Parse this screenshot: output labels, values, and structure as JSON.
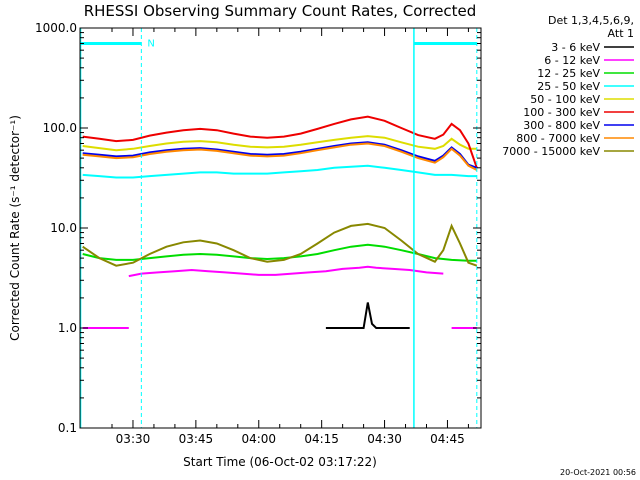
{
  "chart_data": {
    "type": "line",
    "title": "RHESSI Observing Summary Count Rates, Corrected",
    "xlabel": "Start Time (06-Oct-02 03:17:22)",
    "ylabel": "Corrected Count Rate (s⁻¹ detector⁻¹)",
    "y_scale": "log",
    "ylim": [
      0.1,
      1000.0
    ],
    "xlim": [
      "03:17:22",
      "04:53:00"
    ],
    "x_ticks": [
      "03:30",
      "03:45",
      "04:00",
      "04:15",
      "04:30",
      "04:45"
    ],
    "y_ticks": [
      "0.1",
      "1.0",
      "10.0",
      "100.0",
      "1000.0"
    ],
    "legend_header": [
      "Det 1,3,4,5,6,9,",
      "Att 1"
    ],
    "legend_placement": "right",
    "series": [
      {
        "name": "3 - 6 keV",
        "color": "#000000",
        "segments": [
          {
            "x": [
              "04:16",
              "04:20",
              "04:24",
              "04:25",
              "04:26",
              "04:27",
              "04:28",
              "04:32",
              "04:36"
            ],
            "y": [
              1.0,
              1.0,
              1.0,
              1.0,
              1.8,
              1.1,
              1.0,
              1.0,
              1.0
            ]
          }
        ]
      },
      {
        "name": "6 - 12 keV",
        "color": "#ff00ff",
        "segments": [
          {
            "x": [
              "03:18",
              "03:22",
              "03:26",
              "03:29"
            ],
            "y": [
              1.0,
              1.0,
              1.0,
              1.0
            ]
          },
          {
            "x": [
              "03:29",
              "03:32",
              "03:36",
              "03:40",
              "03:44",
              "03:48",
              "03:52",
              "03:56",
              "04:00",
              "04:04",
              "04:08",
              "04:12",
              "04:16",
              "04:20",
              "04:24",
              "04:26",
              "04:28",
              "04:32",
              "04:36",
              "04:40",
              "04:44"
            ],
            "y": [
              3.3,
              3.5,
              3.6,
              3.7,
              3.8,
              3.7,
              3.6,
              3.5,
              3.4,
              3.4,
              3.5,
              3.6,
              3.7,
              3.9,
              4.0,
              4.1,
              4.0,
              3.9,
              3.8,
              3.6,
              3.5
            ]
          },
          {
            "x": [
              "04:46",
              "04:48",
              "04:50",
              "04:52"
            ],
            "y": [
              1.0,
              1.0,
              1.0,
              1.0
            ]
          }
        ]
      },
      {
        "name": "12 - 25 keV",
        "color": "#00dd00",
        "segments": [
          {
            "x": [
              "03:18",
              "03:22",
              "03:26",
              "03:30",
              "03:34",
              "03:38",
              "03:42",
              "03:46",
              "03:50",
              "03:54",
              "03:58",
              "04:02",
              "04:06",
              "04:10",
              "04:14",
              "04:18",
              "04:22",
              "04:26",
              "04:30",
              "04:34",
              "04:38",
              "04:42",
              "04:46",
              "04:50",
              "04:52"
            ],
            "y": [
              5.5,
              5.0,
              4.8,
              4.8,
              5.0,
              5.2,
              5.4,
              5.5,
              5.4,
              5.2,
              5.0,
              4.9,
              5.0,
              5.2,
              5.5,
              6.0,
              6.5,
              6.8,
              6.5,
              6.0,
              5.5,
              5.0,
              4.8,
              4.7,
              4.7
            ]
          }
        ]
      },
      {
        "name": "25 - 50 keV",
        "color": "#00ffff",
        "segments": [
          {
            "x": [
              "03:18",
              "03:22",
              "03:26",
              "03:30",
              "03:34",
              "03:38",
              "03:42",
              "03:46",
              "03:50",
              "03:54",
              "03:58",
              "04:02",
              "04:06",
              "04:10",
              "04:14",
              "04:18",
              "04:22",
              "04:26",
              "04:30",
              "04:34",
              "04:38",
              "04:42",
              "04:46",
              "04:50",
              "04:52"
            ],
            "y": [
              34,
              33,
              32,
              32,
              33,
              34,
              35,
              36,
              36,
              35,
              35,
              35,
              36,
              37,
              38,
              40,
              41,
              42,
              40,
              38,
              36,
              34,
              34,
              33,
              33
            ]
          }
        ]
      },
      {
        "name": "50 - 100 keV",
        "color": "#dddd00",
        "segments": [
          {
            "x": [
              "03:18",
              "03:22",
              "03:26",
              "03:30",
              "03:34",
              "03:38",
              "03:42",
              "03:46",
              "03:50",
              "03:54",
              "03:58",
              "04:02",
              "04:06",
              "04:10",
              "04:14",
              "04:18",
              "04:22",
              "04:26",
              "04:30",
              "04:34",
              "04:38",
              "04:42",
              "04:44",
              "04:46",
              "04:48",
              "04:50",
              "04:52"
            ],
            "y": [
              66,
              63,
              60,
              62,
              66,
              70,
              73,
              74,
              72,
              68,
              65,
              64,
              65,
              68,
              72,
              76,
              80,
              83,
              80,
              72,
              65,
              62,
              66,
              78,
              68,
              62,
              62
            ]
          }
        ]
      },
      {
        "name": "100 - 300 keV",
        "color": "#ee0000",
        "segments": [
          {
            "x": [
              "03:18",
              "03:22",
              "03:26",
              "03:30",
              "03:34",
              "03:38",
              "03:42",
              "03:46",
              "03:50",
              "03:54",
              "03:58",
              "04:02",
              "04:06",
              "04:10",
              "04:14",
              "04:18",
              "04:22",
              "04:26",
              "04:30",
              "04:34",
              "04:38",
              "04:42",
              "04:44",
              "04:46",
              "04:48",
              "04:50",
              "04:52"
            ],
            "y": [
              82,
              78,
              74,
              76,
              84,
              90,
              95,
              98,
              95,
              88,
              82,
              80,
              82,
              88,
              98,
              110,
              122,
              130,
              118,
              100,
              85,
              78,
              86,
              110,
              95,
              70,
              40
            ]
          }
        ]
      },
      {
        "name": "300 - 800 keV",
        "color": "#0000ee",
        "segments": [
          {
            "x": [
              "03:18",
              "03:22",
              "03:26",
              "03:30",
              "03:34",
              "03:38",
              "03:42",
              "03:46",
              "03:50",
              "03:54",
              "03:58",
              "04:02",
              "04:06",
              "04:10",
              "04:14",
              "04:18",
              "04:22",
              "04:26",
              "04:30",
              "04:34",
              "04:38",
              "04:42",
              "04:44",
              "04:46",
              "04:48",
              "04:50",
              "04:52"
            ],
            "y": [
              56,
              54,
              52,
              53,
              57,
              60,
              62,
              63,
              61,
              58,
              55,
              54,
              55,
              58,
              62,
              66,
              70,
              72,
              68,
              60,
              52,
              47,
              53,
              64,
              55,
              43,
              40
            ]
          }
        ]
      },
      {
        "name": "800 - 7000 keV",
        "color": "#ff8800",
        "segments": [
          {
            "x": [
              "03:18",
              "03:22",
              "03:26",
              "03:30",
              "03:34",
              "03:38",
              "03:42",
              "03:46",
              "03:50",
              "03:54",
              "03:58",
              "04:02",
              "04:06",
              "04:10",
              "04:14",
              "04:18",
              "04:22",
              "04:26",
              "04:30",
              "04:34",
              "04:38",
              "04:42",
              "04:44",
              "04:46",
              "04:48",
              "04:50",
              "04:52"
            ],
            "y": [
              54,
              52,
              50,
              51,
              55,
              58,
              60,
              61,
              59,
              56,
              53,
              52,
              53,
              56,
              60,
              64,
              68,
              70,
              66,
              58,
              50,
              45,
              51,
              62,
              53,
              42,
              38
            ]
          }
        ]
      },
      {
        "name": "7000 - 15000 keV",
        "color": "#888800",
        "segments": [
          {
            "x": [
              "03:18",
              "03:22",
              "03:26",
              "03:30",
              "03:34",
              "03:38",
              "03:42",
              "03:46",
              "03:50",
              "03:54",
              "03:58",
              "04:02",
              "04:06",
              "04:10",
              "04:14",
              "04:18",
              "04:22",
              "04:26",
              "04:30",
              "04:34",
              "04:38",
              "04:42",
              "04:44",
              "04:46",
              "04:48",
              "04:50",
              "04:52"
            ],
            "y": [
              6.5,
              5.0,
              4.2,
              4.5,
              5.5,
              6.5,
              7.2,
              7.5,
              7.0,
              6.0,
              5.0,
              4.6,
              4.8,
              5.5,
              7.0,
              9.0,
              10.5,
              11.0,
              10.0,
              7.5,
              5.5,
              4.6,
              6.0,
              10.5,
              7.0,
              4.5,
              4.2
            ]
          }
        ]
      }
    ],
    "annotations": {
      "marker_label": "N",
      "flag_bars": [
        {
          "from": "03:17:22",
          "to": "03:32",
          "y": 700.0,
          "color": "#00ffff"
        },
        {
          "from": "04:37",
          "to": "04:52",
          "y": 700.0,
          "color": "#00ffff"
        }
      ],
      "solid_vlines": [
        {
          "x": "03:17:30",
          "color": "#00ffff"
        },
        {
          "x": "04:37",
          "color": "#00ffff"
        }
      ],
      "dashed_vlines": [
        {
          "x": "03:32",
          "color": "#00ffff"
        },
        {
          "x": "04:52",
          "color": "#00ffff"
        }
      ]
    },
    "generated_stamp": "20-Oct-2021 00:56"
  }
}
